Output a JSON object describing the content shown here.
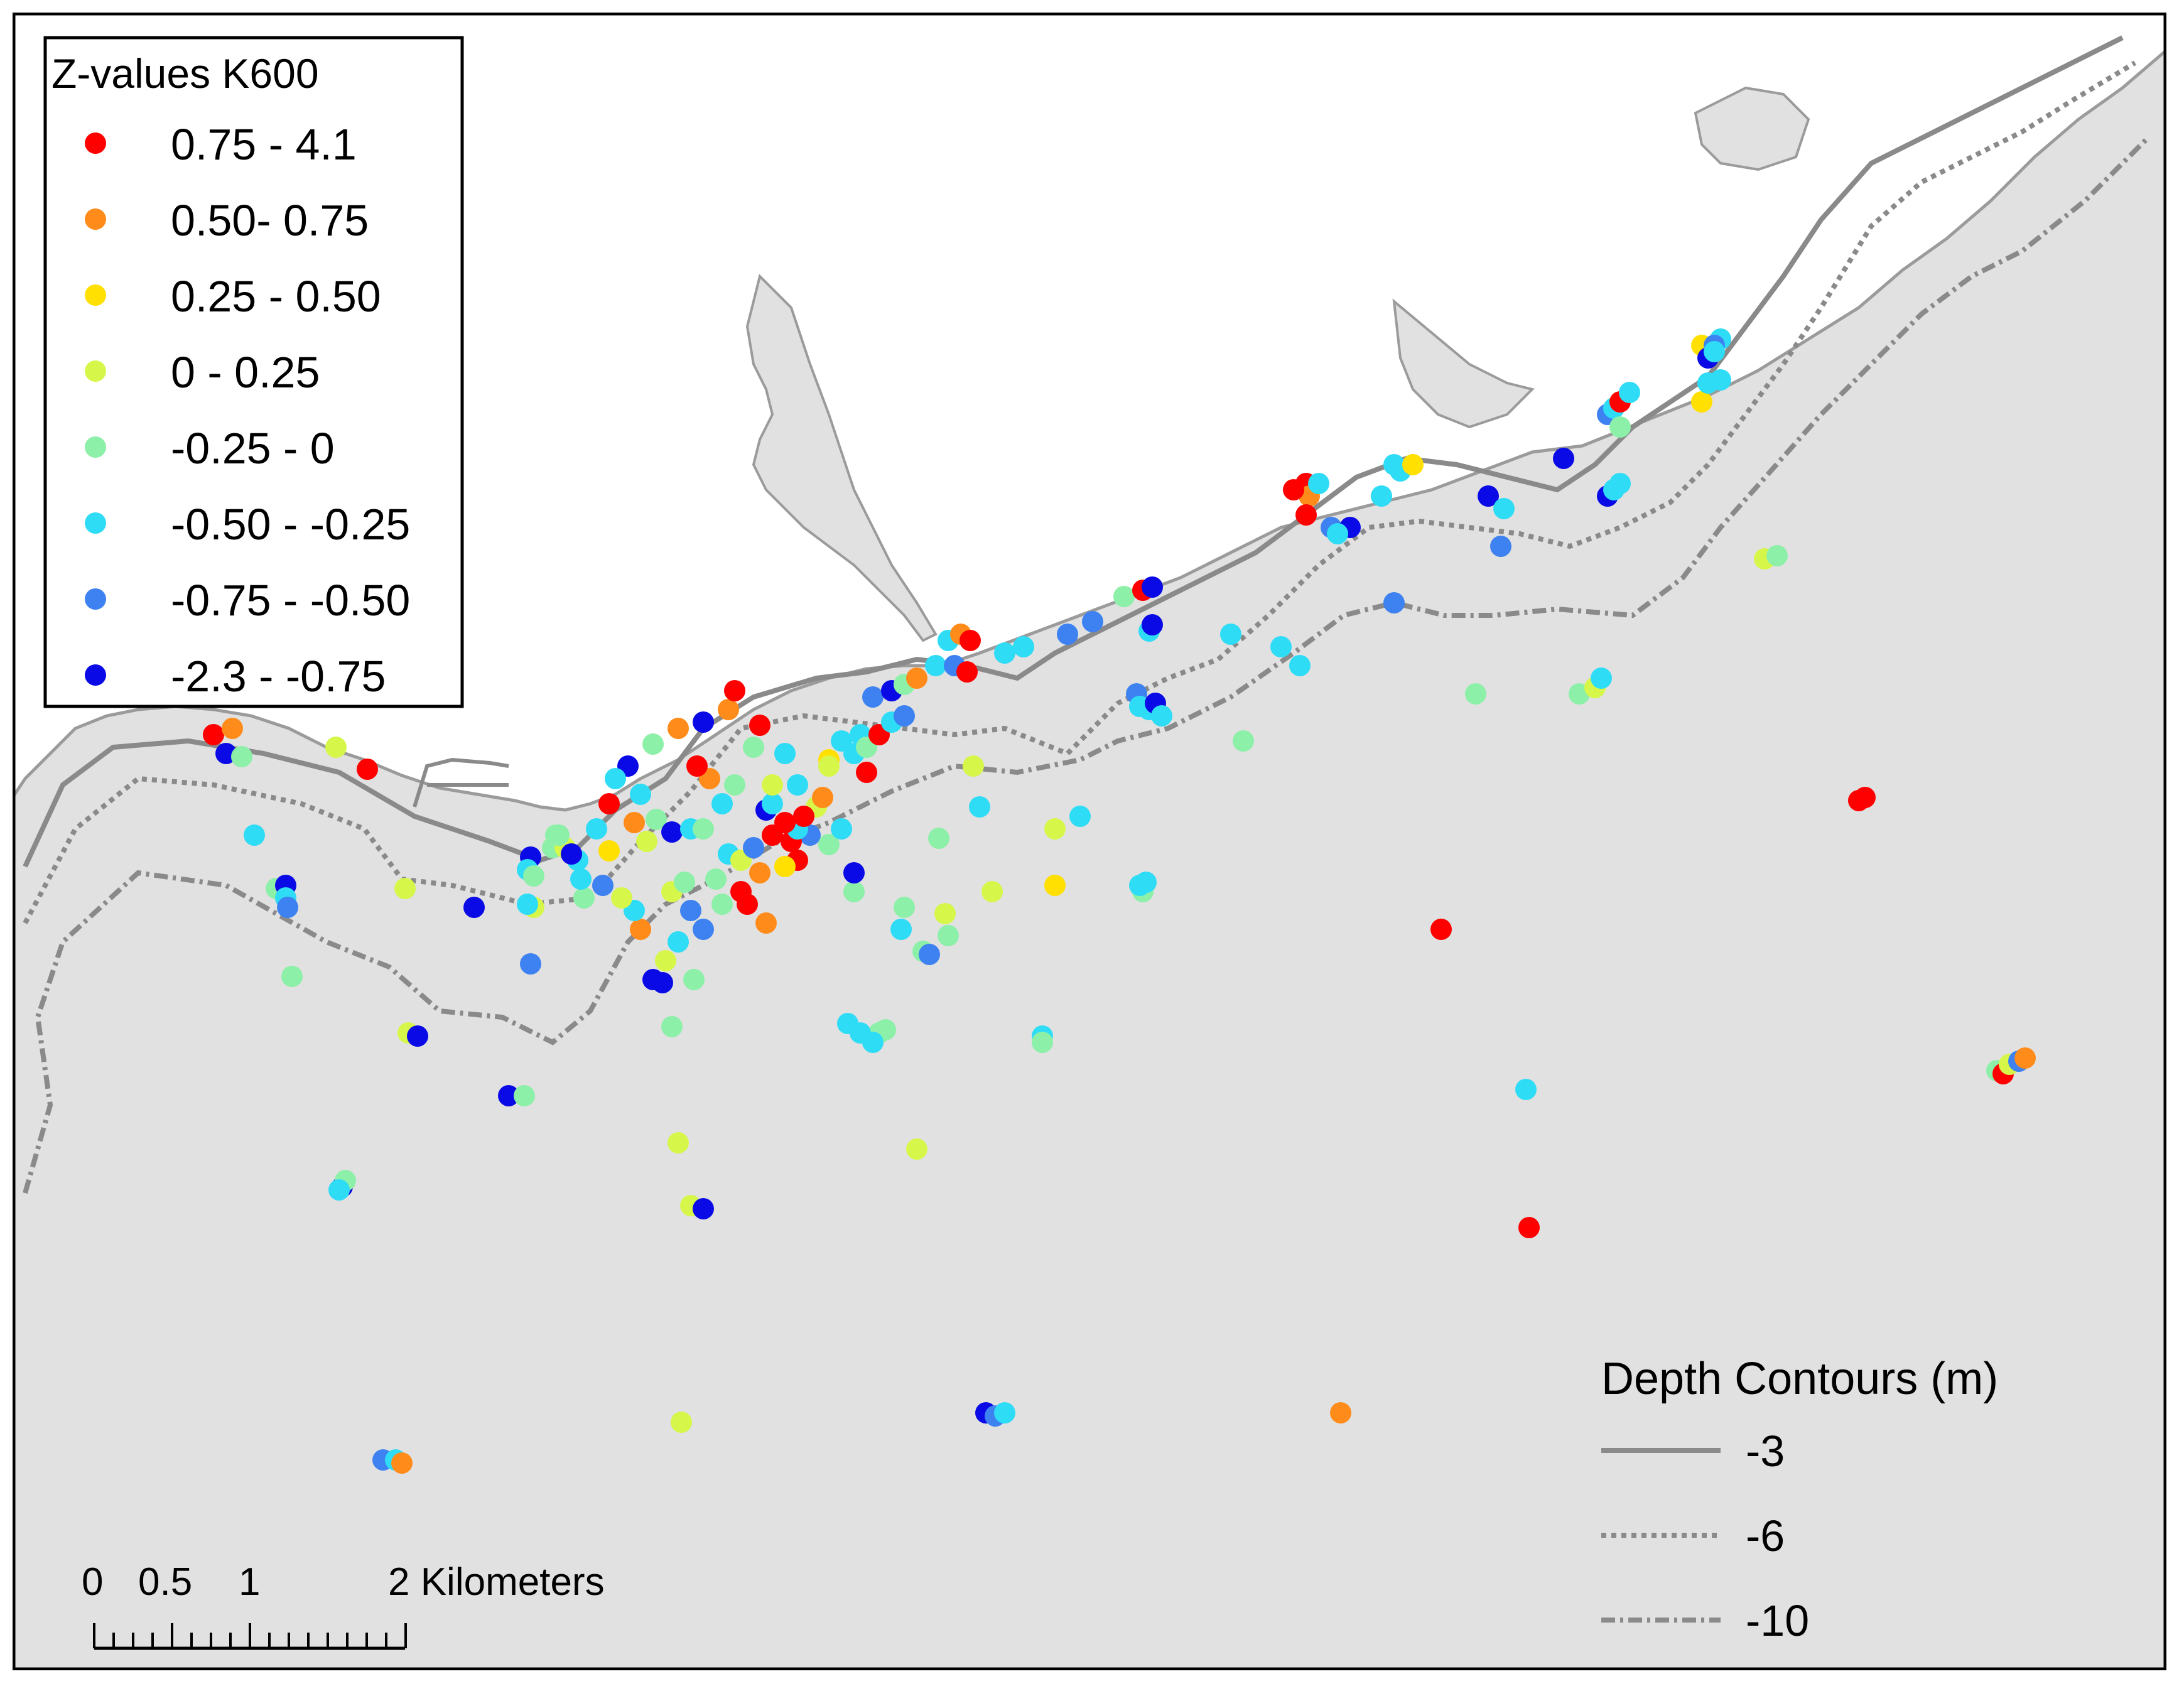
{
  "map": {
    "water_color": "#e1e1e1",
    "land_color": "#ffffff",
    "coast_stroke": "#9b9b9b",
    "contour_color": "#8a8a8a"
  },
  "legend": {
    "title": "Z-values K600",
    "classes": [
      {
        "label": "0.75 - 4.1",
        "color": "#ff0000"
      },
      {
        "label": "0.50- 0.75",
        "color": "#ff8c1a"
      },
      {
        "label": "0.25 - 0.50",
        "color": "#ffe000"
      },
      {
        "label": "0 - 0.25",
        "color": "#d6f74a"
      },
      {
        "label": "-0.25 - 0",
        "color": "#8cf0a8"
      },
      {
        "label": "-0.50 - -0.25",
        "color": "#2fdcf5"
      },
      {
        "label": "-0.75 - -0.50",
        "color": "#3d82f0"
      },
      {
        "label": "-2.3  - -0.75",
        "color": "#0a0ae6"
      }
    ]
  },
  "depth_legend": {
    "title": "Depth Contours (m)",
    "items": [
      {
        "label": "-3",
        "style": "solid"
      },
      {
        "label": "-6",
        "style": "dotted"
      },
      {
        "label": "-10",
        "style": "dash-dot"
      }
    ]
  },
  "scale_bar": {
    "labels": [
      "0",
      "0.5",
      "1",
      "2 Kilometers"
    ]
  }
}
